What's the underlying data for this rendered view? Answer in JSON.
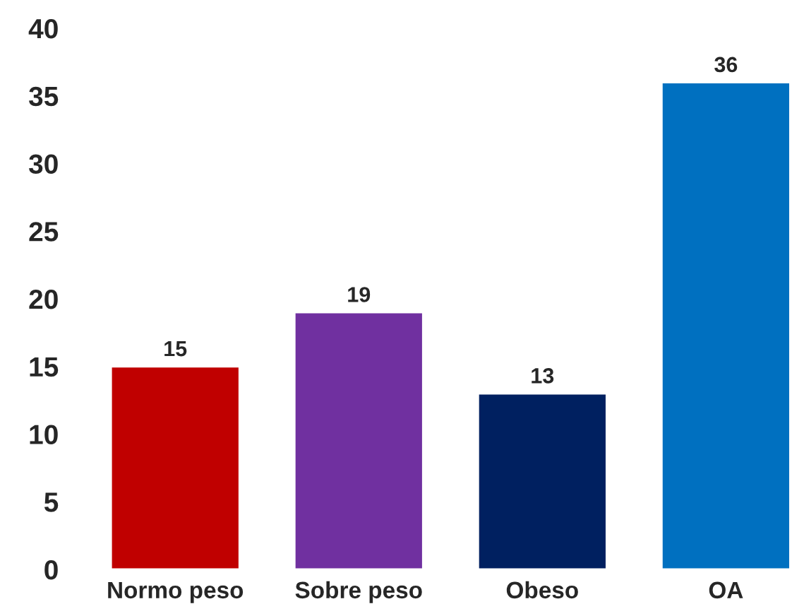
{
  "chart_data": {
    "type": "bar",
    "categories": [
      "Normo peso",
      "Sobre peso",
      "Obeso",
      "OA"
    ],
    "values": [
      15,
      19,
      13,
      36
    ],
    "colors": [
      "#c00000",
      "#7030a0",
      "#002060",
      "#0070c0"
    ],
    "ylim": [
      0,
      40
    ],
    "yticks": [
      0,
      5,
      10,
      15,
      20,
      25,
      30,
      35,
      40
    ],
    "data_labels": true,
    "grid": false,
    "legend": false
  }
}
